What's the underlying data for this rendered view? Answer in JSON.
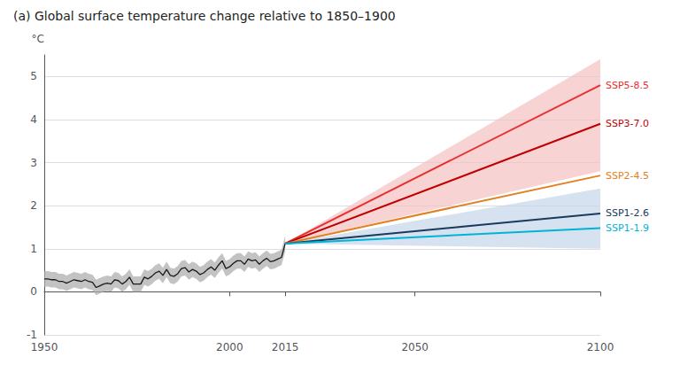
{
  "chart_data": {
    "type": "line",
    "title": "(a) Global surface temperature change relative to 1850–1900",
    "y_label": "°C",
    "xlim": [
      1950,
      2100
    ],
    "xticks": [
      1950,
      2000,
      2015,
      2050,
      2100
    ],
    "ylim": [
      -1,
      5.5
    ],
    "yticks": [
      -1,
      0,
      1,
      2,
      3,
      4,
      5
    ],
    "grid": "y",
    "bands": [
      {
        "color": "#f5c0c0",
        "x": [
          2015,
          2100
        ],
        "lower": [
          1.12,
          2.8
        ],
        "upper": [
          1.12,
          5.4
        ]
      },
      {
        "color": "#c5d5e8",
        "x": [
          2015,
          2100
        ],
        "lower": [
          1.12,
          1.0
        ],
        "upper": [
          1.12,
          2.4
        ]
      },
      {
        "color": "#aaaaaa",
        "x": [
          1950,
          1951,
          1952,
          1953,
          1954,
          1955,
          1956,
          1957,
          1958,
          1959,
          1960,
          1961,
          1962,
          1963,
          1964,
          1965,
          1966,
          1967,
          1968,
          1969,
          1970,
          1971,
          1972,
          1973,
          1974,
          1975,
          1976,
          1977,
          1978,
          1979,
          1980,
          1981,
          1982,
          1983,
          1984,
          1985,
          1986,
          1987,
          1988,
          1989,
          1990,
          1991,
          1992,
          1993,
          1994,
          1995,
          1996,
          1997,
          1998,
          1999,
          2000,
          2001,
          2002,
          2003,
          2004,
          2005,
          2006,
          2007,
          2008,
          2009,
          2010,
          2011,
          2012,
          2013,
          2014,
          2015
        ],
        "lower": [
          0.12,
          0.12,
          0.1,
          0.1,
          0.06,
          0.06,
          0.02,
          0.06,
          0.1,
          0.08,
          0.06,
          0.1,
          0.06,
          0.04,
          -0.08,
          -0.04,
          0,
          0.02,
          0,
          0.1,
          0.08,
          0,
          0.06,
          0.16,
          0,
          0,
          0,
          0.16,
          0.12,
          0.18,
          0.26,
          0.3,
          0.2,
          0.34,
          0.2,
          0.18,
          0.24,
          0.36,
          0.38,
          0.28,
          0.34,
          0.3,
          0.22,
          0.26,
          0.34,
          0.4,
          0.32,
          0.44,
          0.54,
          0.36,
          0.4,
          0.48,
          0.54,
          0.54,
          0.46,
          0.58,
          0.54,
          0.56,
          0.46,
          0.54,
          0.6,
          0.52,
          0.54,
          0.58,
          0.62,
          0.94
        ],
        "upper": [
          0.48,
          0.48,
          0.46,
          0.46,
          0.42,
          0.42,
          0.38,
          0.42,
          0.46,
          0.44,
          0.42,
          0.46,
          0.42,
          0.4,
          0.28,
          0.32,
          0.36,
          0.38,
          0.36,
          0.46,
          0.44,
          0.36,
          0.42,
          0.52,
          0.36,
          0.36,
          0.36,
          0.52,
          0.48,
          0.54,
          0.62,
          0.66,
          0.56,
          0.7,
          0.56,
          0.54,
          0.6,
          0.72,
          0.74,
          0.64,
          0.7,
          0.66,
          0.58,
          0.62,
          0.7,
          0.76,
          0.68,
          0.8,
          0.9,
          0.72,
          0.76,
          0.84,
          0.9,
          0.9,
          0.82,
          0.94,
          0.9,
          0.92,
          0.82,
          0.9,
          0.96,
          0.88,
          0.9,
          0.94,
          0.98,
          1.3
        ]
      }
    ],
    "series": [
      {
        "color": "#1a1a1a",
        "x": [
          1950,
          1951,
          1952,
          1953,
          1954,
          1955,
          1956,
          1957,
          1958,
          1959,
          1960,
          1961,
          1962,
          1963,
          1964,
          1965,
          1966,
          1967,
          1968,
          1969,
          1970,
          1971,
          1972,
          1973,
          1974,
          1975,
          1976,
          1977,
          1978,
          1979,
          1980,
          1981,
          1982,
          1983,
          1984,
          1985,
          1986,
          1987,
          1988,
          1989,
          1990,
          1991,
          1992,
          1993,
          1994,
          1995,
          1996,
          1997,
          1998,
          1999,
          2000,
          2001,
          2002,
          2003,
          2004,
          2005,
          2006,
          2007,
          2008,
          2009,
          2010,
          2011,
          2012,
          2013,
          2014,
          2015
        ],
        "values": [
          0.3,
          0.3,
          0.28,
          0.28,
          0.24,
          0.24,
          0.2,
          0.24,
          0.28,
          0.26,
          0.24,
          0.28,
          0.24,
          0.22,
          0.1,
          0.14,
          0.18,
          0.2,
          0.18,
          0.28,
          0.26,
          0.18,
          0.24,
          0.34,
          0.18,
          0.18,
          0.18,
          0.34,
          0.3,
          0.36,
          0.44,
          0.48,
          0.38,
          0.52,
          0.38,
          0.36,
          0.42,
          0.54,
          0.56,
          0.46,
          0.52,
          0.48,
          0.4,
          0.44,
          0.52,
          0.58,
          0.5,
          0.62,
          0.72,
          0.54,
          0.58,
          0.66,
          0.72,
          0.72,
          0.64,
          0.76,
          0.72,
          0.74,
          0.64,
          0.72,
          0.78,
          0.7,
          0.72,
          0.76,
          0.8,
          1.12
        ]
      },
      {
        "name": "SSP5-8.5",
        "color": "#e83030",
        "x": [
          2015,
          2100
        ],
        "values": [
          1.12,
          4.8
        ]
      },
      {
        "name": "SSP3-7.0",
        "color": "#c00000",
        "x": [
          2015,
          2100
        ],
        "values": [
          1.12,
          3.9
        ]
      },
      {
        "name": "SSP2-4.5",
        "color": "#e08020",
        "x": [
          2015,
          2100
        ],
        "values": [
          1.12,
          2.7
        ]
      },
      {
        "name": "SSP1-2.6",
        "color": "#1a3a5c",
        "x": [
          2015,
          2100
        ],
        "values": [
          1.12,
          1.82
        ]
      },
      {
        "name": "SSP1-1.9",
        "color": "#00b4d8",
        "x": [
          2015,
          2100
        ],
        "values": [
          1.12,
          1.48
        ]
      }
    ]
  }
}
